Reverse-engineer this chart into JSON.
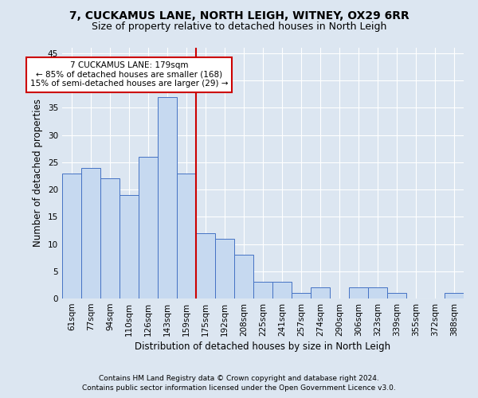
{
  "title": "7, CUCKAMUS LANE, NORTH LEIGH, WITNEY, OX29 6RR",
  "subtitle": "Size of property relative to detached houses in North Leigh",
  "xlabel": "Distribution of detached houses by size in North Leigh",
  "ylabel": "Number of detached properties",
  "categories": [
    "61sqm",
    "77sqm",
    "94sqm",
    "110sqm",
    "126sqm",
    "143sqm",
    "159sqm",
    "175sqm",
    "192sqm",
    "208sqm",
    "225sqm",
    "241sqm",
    "257sqm",
    "274sqm",
    "290sqm",
    "306sqm",
    "323sqm",
    "339sqm",
    "355sqm",
    "372sqm",
    "388sqm"
  ],
  "values": [
    23,
    24,
    22,
    19,
    26,
    37,
    23,
    12,
    11,
    8,
    3,
    3,
    1,
    2,
    0,
    2,
    2,
    1,
    0,
    0,
    1
  ],
  "bar_color": "#c6d9f0",
  "bar_edge_color": "#4472c4",
  "property_line_color": "#cc0000",
  "annotation_text": "7 CUCKAMUS LANE: 179sqm\n← 85% of detached houses are smaller (168)\n15% of semi-detached houses are larger (29) →",
  "annotation_box_color": "white",
  "annotation_box_edge_color": "#cc0000",
  "ylim": [
    0,
    46
  ],
  "yticks": [
    0,
    5,
    10,
    15,
    20,
    25,
    30,
    35,
    40,
    45
  ],
  "background_color": "#dce6f1",
  "plot_bg_color": "#dce6f1",
  "footer_line1": "Contains HM Land Registry data © Crown copyright and database right 2024.",
  "footer_line2": "Contains public sector information licensed under the Open Government Licence v3.0.",
  "title_fontsize": 10,
  "subtitle_fontsize": 9,
  "xlabel_fontsize": 8.5,
  "ylabel_fontsize": 8.5,
  "tick_fontsize": 7.5,
  "footer_fontsize": 6.5,
  "annotation_fontsize": 7.5
}
